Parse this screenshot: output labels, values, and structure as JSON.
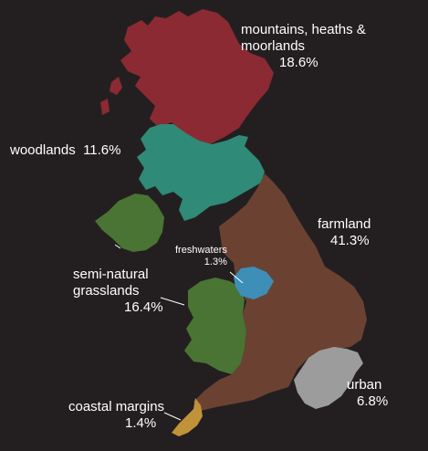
{
  "colors": {
    "background": "#231f20",
    "mountains": "#8b2a32",
    "woodlands": "#2f8a78",
    "farmland": "#6b4232",
    "freshwaters": "#3d8fb8",
    "seminatural": "#4a7433",
    "urban": "#9c9c9c",
    "coastal": "#c0923a",
    "text": "#ffffff"
  },
  "habitats": [
    {
      "id": "mountains",
      "lines": [
        "mountains, heaths &",
        "moorlands"
      ],
      "percent": "18.6%"
    },
    {
      "id": "woodlands",
      "lines": [
        "woodlands"
      ],
      "percent": "11.6%"
    },
    {
      "id": "farmland",
      "lines": [
        "farmland"
      ],
      "percent": "41.3%"
    },
    {
      "id": "freshwaters",
      "lines": [
        "freshwaters"
      ],
      "percent": "1.3%"
    },
    {
      "id": "seminatural",
      "lines": [
        "semi-natural",
        "grasslands"
      ],
      "percent": "16.4%"
    },
    {
      "id": "urban",
      "lines": [
        "urban"
      ],
      "percent": "6.8%"
    },
    {
      "id": "coastal",
      "lines": [
        "coastal margins"
      ],
      "percent": "1.4%"
    }
  ]
}
